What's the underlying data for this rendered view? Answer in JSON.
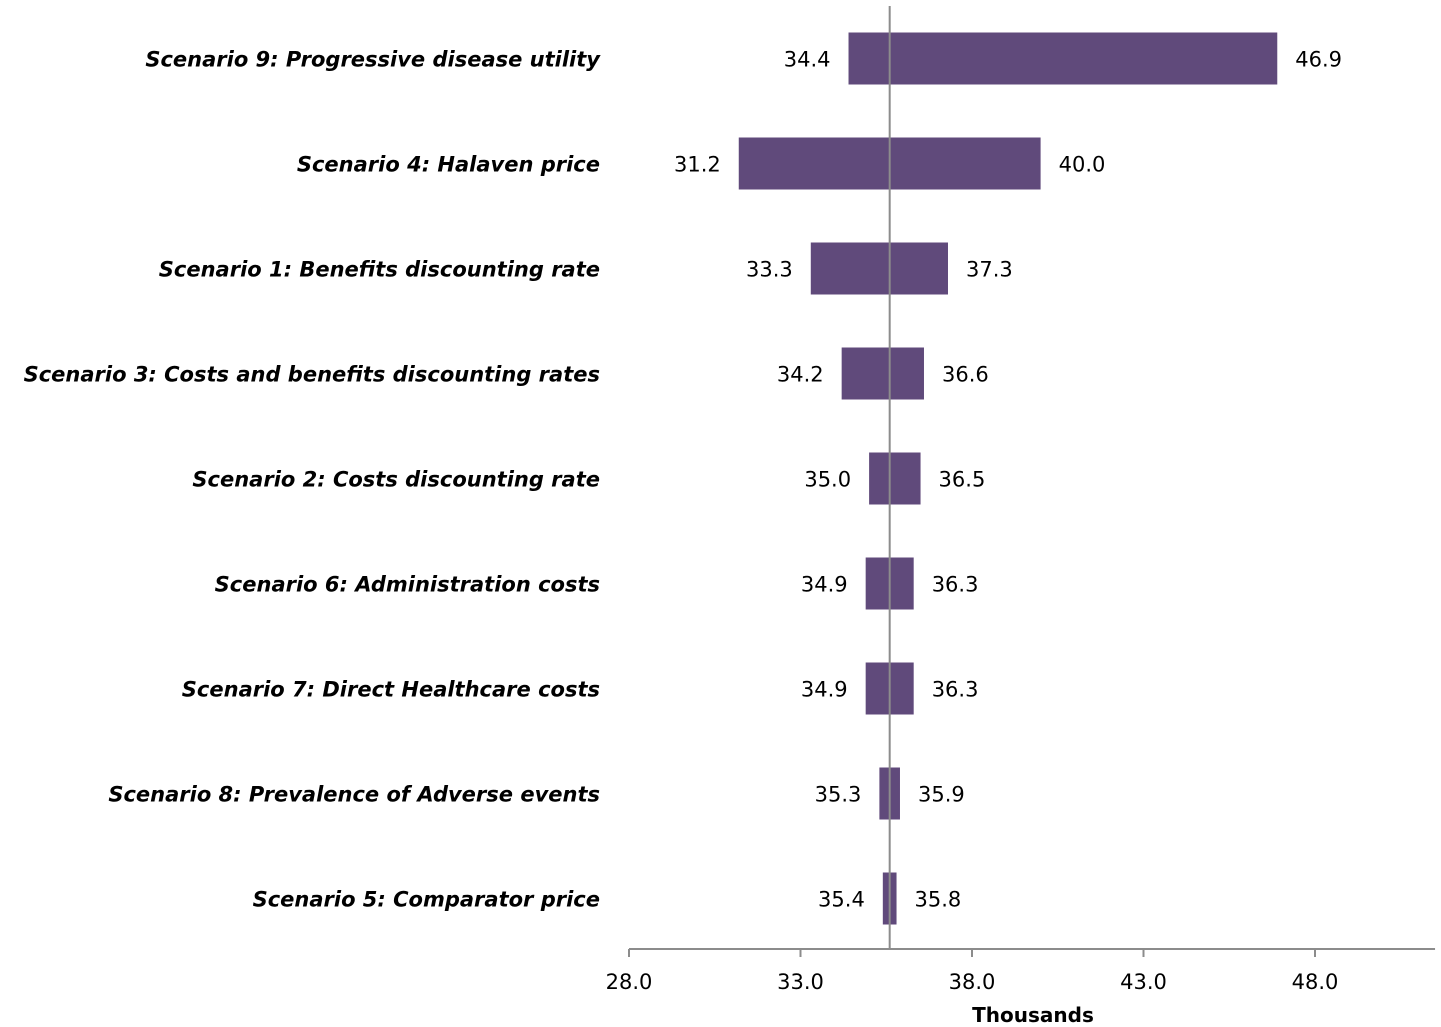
{
  "chart_data": {
    "type": "bar",
    "orientation": "horizontal",
    "subtype": "tornado",
    "xlabel": "Thousands",
    "xlim": [
      28.0,
      51.5
    ],
    "xticks": [
      "28.0",
      "33.0",
      "38.0",
      "43.0",
      "48.0"
    ],
    "base_value": 35.6,
    "grid": false,
    "legend": "none",
    "bar_color": "#604a7b",
    "axis_color": "#8c8c8c",
    "categories": [
      "Scenario 9: Progressive disease utility",
      "Scenario 4: Halaven price",
      "Scenario 1: Benefits discounting rate",
      "Scenario 3: Costs and benefits discounting rates",
      "Scenario 2: Costs discounting rate",
      "Scenario 6: Administration costs",
      "Scenario 7: Direct Healthcare costs",
      "Scenario 8: Prevalence of Adverse events",
      "Scenario 5: Comparator price"
    ],
    "low": [
      34.4,
      31.2,
      33.3,
      34.2,
      35.0,
      34.9,
      34.9,
      35.3,
      35.4
    ],
    "high": [
      46.9,
      40.0,
      37.3,
      36.6,
      36.5,
      36.3,
      36.3,
      35.9,
      35.8
    ],
    "low_labels": [
      "34.4",
      "31.2",
      "33.3",
      "34.2",
      "35.0",
      "34.9",
      "34.9",
      "35.3",
      "35.4"
    ],
    "high_labels": [
      "46.9",
      "40.0",
      "37.3",
      "36.6",
      "36.5",
      "36.3",
      "36.3",
      "35.9",
      "35.8"
    ]
  }
}
